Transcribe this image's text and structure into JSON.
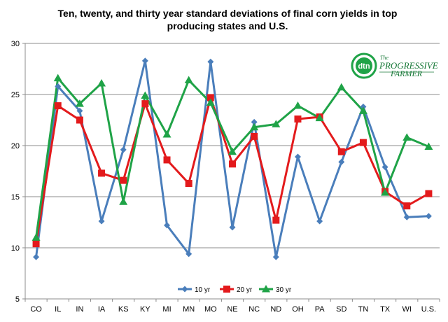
{
  "chart_data": {
    "type": "line",
    "title": [
      "Ten, twenty, and thirty year standard deviations of final corn yields in top",
      "producing states and U.S."
    ],
    "xlabel": "",
    "ylabel": "",
    "categories": [
      "CO",
      "IL",
      "IN",
      "IA",
      "KS",
      "KY",
      "MI",
      "MN",
      "MO",
      "NE",
      "NC",
      "ND",
      "OH",
      "PA",
      "SD",
      "TN",
      "TX",
      "WI",
      "U.S."
    ],
    "ylim": [
      5,
      30
    ],
    "yticks": [
      5,
      10,
      15,
      20,
      25,
      30
    ],
    "grid": "horizontal",
    "legend_position": "bottom",
    "series": [
      {
        "name": "10 yr",
        "marker": "diamond",
        "color": "#4a7ebb",
        "values": [
          9.1,
          25.8,
          23.4,
          12.6,
          19.6,
          28.3,
          12.2,
          9.4,
          28.2,
          12.0,
          22.3,
          9.1,
          18.9,
          12.6,
          18.4,
          23.8,
          17.9,
          13.0,
          13.1
        ]
      },
      {
        "name": "20 yr",
        "marker": "square",
        "color": "#e31a1c",
        "values": [
          10.4,
          23.9,
          22.5,
          17.3,
          16.6,
          24.1,
          18.6,
          16.3,
          24.7,
          18.2,
          20.9,
          12.7,
          22.6,
          22.8,
          19.4,
          20.3,
          15.5,
          14.1,
          15.3
        ]
      },
      {
        "name": "30 yr",
        "marker": "triangle",
        "color": "#1fa347",
        "values": [
          11.0,
          26.6,
          24.1,
          26.1,
          14.5,
          24.9,
          21.1,
          26.4,
          24.2,
          19.4,
          21.8,
          22.1,
          23.9,
          22.7,
          25.7,
          23.4,
          15.4,
          20.8,
          19.9
        ]
      }
    ]
  },
  "logo": {
    "badge": "dtn",
    "line1": "The",
    "line2": "PROGRESSIVE",
    "line3": "FARMER"
  }
}
